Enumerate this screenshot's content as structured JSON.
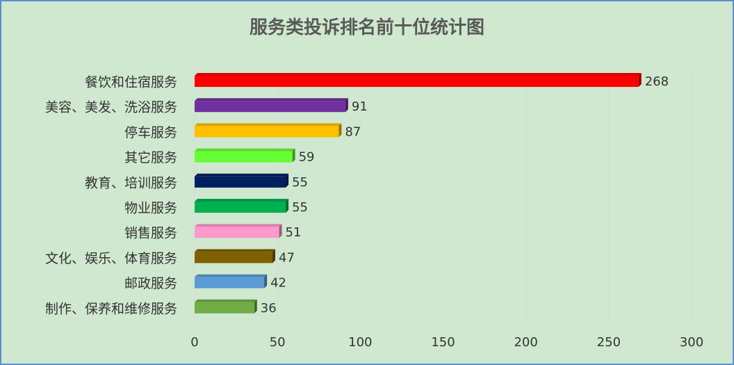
{
  "chart_data": {
    "type": "bar",
    "orientation": "horizontal",
    "title": "服务类投诉排名前十位统计图",
    "categories": [
      "餐饮和住宿服务",
      "美容、美发、洗浴服务",
      "停车服务",
      "其它服务",
      "教育、培训服务",
      "物业服务",
      "销售服务",
      "文化、娱乐、体育服务",
      "邮政服务",
      "制作、保养和维修服务"
    ],
    "values": [
      268,
      91,
      87,
      59,
      55,
      55,
      51,
      47,
      42,
      36
    ],
    "colors": [
      "#ff0000",
      "#7030a0",
      "#ffc000",
      "#66ff33",
      "#002060",
      "#00b050",
      "#ff99cc",
      "#7f6000",
      "#5b9bd5",
      "#70ad47"
    ],
    "xlim": [
      0,
      300
    ],
    "xticks": [
      0,
      50,
      100,
      150,
      200,
      250,
      300
    ],
    "grid": true
  }
}
